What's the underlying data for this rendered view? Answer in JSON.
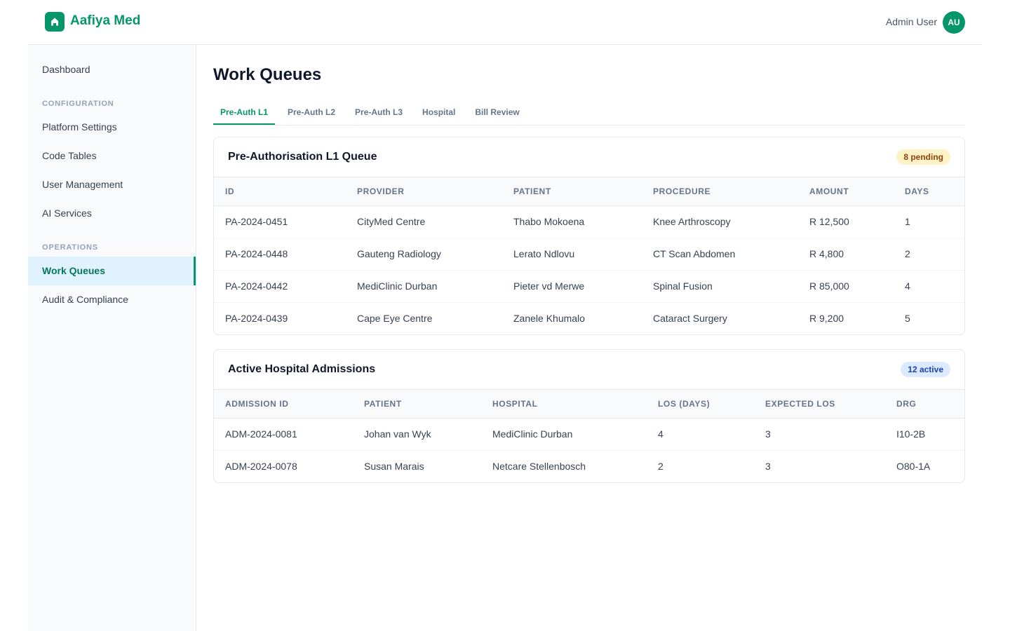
{
  "header": {
    "brand": "Aafiya Med",
    "user_name": "Admin User",
    "user_initials": "AU"
  },
  "sidebar": {
    "top": [
      {
        "label": "Dashboard",
        "active": false
      }
    ],
    "sections": [
      {
        "title": "CONFIGURATION",
        "items": [
          {
            "label": "Platform Settings",
            "active": false
          },
          {
            "label": "Code Tables",
            "active": false
          },
          {
            "label": "User Management",
            "active": false
          },
          {
            "label": "AI Services",
            "active": false
          }
        ]
      },
      {
        "title": "OPERATIONS",
        "items": [
          {
            "label": "Work Queues",
            "active": true
          },
          {
            "label": "Audit & Compliance",
            "active": false
          }
        ]
      }
    ]
  },
  "page": {
    "title": "Work Queues"
  },
  "tabs": [
    {
      "label": "Pre-Auth L1",
      "active": true
    },
    {
      "label": "Pre-Auth L2",
      "active": false
    },
    {
      "label": "Pre-Auth L3",
      "active": false
    },
    {
      "label": "Hospital",
      "active": false
    },
    {
      "label": "Bill Review",
      "active": false
    }
  ],
  "cards": [
    {
      "title": "Pre-Authorisation L1 Queue",
      "badge": "8 pending",
      "badge_tone": "warning",
      "columns": [
        "ID",
        "PROVIDER",
        "PATIENT",
        "PROCEDURE",
        "AMOUNT",
        "DAYS"
      ],
      "rows": [
        [
          "PA-2024-0451",
          "CityMed Centre",
          "Thabo Mokoena",
          "Knee Arthroscopy",
          "R 12,500",
          "1"
        ],
        [
          "PA-2024-0448",
          "Gauteng Radiology",
          "Lerato Ndlovu",
          "CT Scan Abdomen",
          "R 4,800",
          "2"
        ],
        [
          "PA-2024-0442",
          "MediClinic Durban",
          "Pieter vd Merwe",
          "Spinal Fusion",
          "R 85,000",
          "4"
        ],
        [
          "PA-2024-0439",
          "Cape Eye Centre",
          "Zanele Khumalo",
          "Cataract Surgery",
          "R 9,200",
          "5"
        ]
      ]
    },
    {
      "title": "Active Hospital Admissions",
      "badge": "12 active",
      "badge_tone": "info",
      "columns": [
        "ADMISSION ID",
        "PATIENT",
        "HOSPITAL",
        "LOS (DAYS)",
        "EXPECTED LOS",
        "DRG"
      ],
      "rows": [
        [
          "ADM-2024-0081",
          "Johan van Wyk",
          "MediClinic Durban",
          "4",
          "3",
          "I10-2B"
        ],
        [
          "ADM-2024-0078",
          "Susan Marais",
          "Netcare Stellenbosch",
          "2",
          "3",
          "O80-1A"
        ]
      ]
    }
  ]
}
